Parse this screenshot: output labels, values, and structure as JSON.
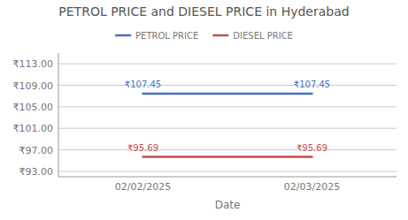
{
  "chart_data": {
    "type": "line",
    "title": "PETROL PRICE and DIESEL PRICE in Hyderabad",
    "x_label": "Date",
    "categories": [
      "02/02/2025",
      "02/03/2025"
    ],
    "series": [
      {
        "name": "PETROL PRICE",
        "color": "#4472C4",
        "values": [
          107.45,
          107.45
        ],
        "value_labels": [
          "₹107.45",
          "₹107.45"
        ]
      },
      {
        "name": "DIESEL PRICE",
        "color": "#C0504D",
        "values": [
          95.69,
          95.69
        ],
        "value_labels": [
          "₹95.69",
          "₹95.69"
        ]
      }
    ],
    "ylim": [
      92.0,
      115.0
    ],
    "yticks": [
      {
        "value": 93.0,
        "label": "₹93.00"
      },
      {
        "value": 97.0,
        "label": "₹97.00"
      },
      {
        "value": 101.0,
        "label": "₹101.00"
      },
      {
        "value": 105.0,
        "label": "₹105.00"
      },
      {
        "value": 109.0,
        "label": "₹109.00"
      },
      {
        "value": 113.0,
        "label": "₹113.00"
      }
    ],
    "grid": true,
    "legend": "top",
    "data_labels": true
  }
}
